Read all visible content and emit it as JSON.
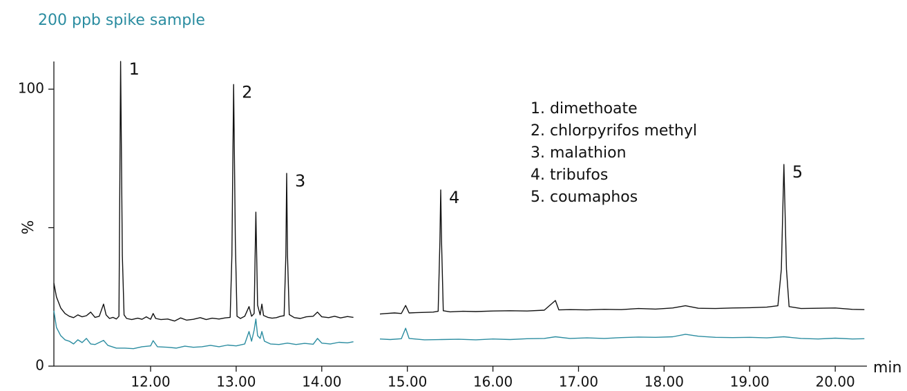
{
  "chart_data": {
    "type": "line",
    "title": "200 ppb spike sample",
    "ylabel": "%",
    "xlabel": "min",
    "xlim": [
      10.87,
      20.37
    ],
    "ylim": [
      0,
      110
    ],
    "yticks": [
      0,
      100
    ],
    "yminor_ticks": [
      50
    ],
    "xticks": [
      {
        "value": 12,
        "label": "12.00"
      },
      {
        "value": 13,
        "label": "13.00"
      },
      {
        "value": 14,
        "label": "14.00"
      },
      {
        "value": 15,
        "label": "15.00"
      },
      {
        "value": 16,
        "label": "16.00"
      },
      {
        "value": 17,
        "label": "17.00"
      },
      {
        "value": 18,
        "label": "18.00"
      },
      {
        "value": 19,
        "label": "19.00"
      },
      {
        "value": 20,
        "label": "20.00"
      }
    ],
    "legend_text": [
      "1. dimethoate",
      "2. chlorpyrifos methyl",
      "3. malathion",
      "4. tribufos",
      "5. coumaphos"
    ],
    "annotations": [
      {
        "text": "1",
        "x": 11.65
      },
      {
        "text": "2",
        "x": 12.97
      },
      {
        "text": "3",
        "x": 13.59
      },
      {
        "text": "4",
        "x": 15.39
      },
      {
        "text": "5",
        "x": 19.4
      }
    ],
    "series": [
      {
        "color": "#111111",
        "x": [
          10.87,
          10.9,
          10.95,
          11.0,
          11.05,
          11.1,
          11.15,
          11.2,
          11.25,
          11.3,
          11.35,
          11.4,
          11.45,
          11.48,
          11.52,
          11.56,
          11.6,
          11.63,
          11.65,
          11.67,
          11.69,
          11.72,
          11.78,
          11.85,
          11.9,
          11.95,
          12.0,
          12.03,
          12.06,
          12.12,
          12.2,
          12.28,
          12.35,
          12.42,
          12.5,
          12.58,
          12.65,
          12.72,
          12.8,
          12.87,
          12.93,
          12.95,
          12.97,
          12.99,
          13.01,
          13.05,
          13.1,
          13.15,
          13.18,
          13.21,
          13.23,
          13.25,
          13.28,
          13.3,
          13.32,
          13.37,
          13.42,
          13.47,
          13.52,
          13.56,
          13.58,
          13.59,
          13.6,
          13.62,
          13.68,
          13.75,
          13.82,
          13.9,
          13.95,
          14.0,
          14.08,
          14.15,
          14.22,
          14.3,
          14.37,
          null,
          14.68,
          14.75,
          14.85,
          14.93,
          14.98,
          15.02,
          15.1,
          15.2,
          15.3,
          15.36,
          15.38,
          15.39,
          15.4,
          15.42,
          15.5,
          15.65,
          15.8,
          16.0,
          16.2,
          16.4,
          16.6,
          16.73,
          16.77,
          16.9,
          17.1,
          17.3,
          17.5,
          17.7,
          17.9,
          18.1,
          18.25,
          18.4,
          18.6,
          18.8,
          19.0,
          19.2,
          19.33,
          19.37,
          19.4,
          19.43,
          19.46,
          19.6,
          19.8,
          20.0,
          20.2,
          20.34
        ],
        "values": [
          30,
          25,
          21,
          19,
          18,
          17.5,
          18.5,
          17.8,
          18.2,
          19.5,
          17.6,
          18,
          22.4,
          18.5,
          17.2,
          17.6,
          17,
          18,
          110,
          40,
          18.5,
          17.2,
          16.8,
          17.3,
          16.9,
          17.8,
          16.9,
          19,
          17.2,
          16.8,
          17,
          16.3,
          17.4,
          16.6,
          16.9,
          17.5,
          16.8,
          17.3,
          17,
          17.4,
          17.6,
          40,
          101.7,
          45,
          18,
          17.2,
          18,
          21.5,
          18,
          19,
          55.6,
          22,
          18.5,
          22.4,
          18.3,
          17.6,
          17.3,
          17.5,
          18,
          18.2,
          40,
          69.6,
          40,
          18.6,
          17.5,
          17.2,
          17.8,
          18,
          19.5,
          17.8,
          17.5,
          18,
          17.4,
          17.9,
          17.6,
          null,
          18.8,
          19,
          19.2,
          19,
          21.9,
          19.2,
          19.3,
          19.4,
          19.5,
          19.8,
          45,
          63.6,
          45,
          20,
          19.6,
          19.8,
          19.7,
          19.9,
          20,
          19.9,
          20.2,
          23.7,
          20.3,
          20.4,
          20.3,
          20.5,
          20.4,
          20.8,
          20.6,
          21,
          21.8,
          20.9,
          20.8,
          21,
          21.1,
          21.3,
          21.8,
          35,
          72.8,
          35,
          21.5,
          20.8,
          20.9,
          21,
          20.5,
          20.4
        ]
      },
      {
        "color": "#2a8ca0",
        "x": [
          10.87,
          10.9,
          10.95,
          11.0,
          11.05,
          11.1,
          11.15,
          11.2,
          11.25,
          11.3,
          11.35,
          11.45,
          11.5,
          11.6,
          11.7,
          11.8,
          11.9,
          12.0,
          12.03,
          12.08,
          12.2,
          12.3,
          12.4,
          12.5,
          12.6,
          12.7,
          12.8,
          12.9,
          13.0,
          13.1,
          13.15,
          13.18,
          13.21,
          13.23,
          13.25,
          13.28,
          13.3,
          13.33,
          13.4,
          13.5,
          13.6,
          13.7,
          13.8,
          13.9,
          13.95,
          14.0,
          14.1,
          14.2,
          14.3,
          14.37,
          null,
          14.68,
          14.8,
          14.93,
          14.98,
          15.02,
          15.2,
          15.4,
          15.6,
          15.8,
          16.0,
          16.2,
          16.4,
          16.6,
          16.73,
          16.9,
          17.1,
          17.3,
          17.5,
          17.7,
          17.9,
          18.1,
          18.25,
          18.4,
          18.6,
          18.8,
          19.0,
          19.2,
          19.4,
          19.6,
          19.8,
          20.0,
          20.2,
          20.34
        ],
        "values": [
          20,
          14,
          11,
          9.5,
          9,
          8,
          9.5,
          8.5,
          10,
          8,
          7.8,
          9.3,
          7.5,
          6.5,
          6.5,
          6.3,
          7,
          7.3,
          9.2,
          7,
          6.8,
          6.5,
          7.2,
          6.8,
          7,
          7.5,
          7,
          7.6,
          7.3,
          8,
          12.5,
          9,
          13,
          17,
          11,
          10,
          12.5,
          9,
          8,
          7.8,
          8.3,
          7.8,
          8.2,
          7.9,
          10,
          8.3,
          8,
          8.6,
          8.4,
          8.8,
          null,
          9.8,
          9.6,
          9.9,
          13.7,
          10,
          9.5,
          9.6,
          9.7,
          9.5,
          9.8,
          9.6,
          9.9,
          10,
          10.6,
          10,
          10.2,
          10,
          10.3,
          10.5,
          10.4,
          10.6,
          11.5,
          10.8,
          10.4,
          10.3,
          10.4,
          10.2,
          10.6,
          10,
          9.8,
          10.1,
          9.8,
          9.9
        ]
      }
    ]
  }
}
